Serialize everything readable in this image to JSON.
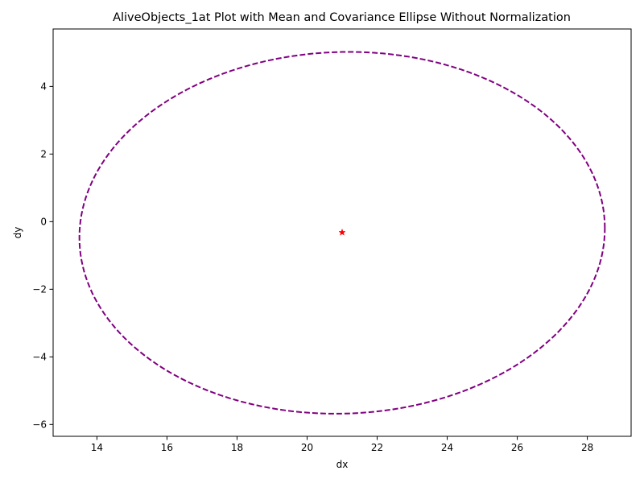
{
  "chart_data": {
    "type": "scatter",
    "title": "AliveObjects_1at Plot with Mean and Covariance Ellipse Without Normalization",
    "xlabel": "dx",
    "ylabel": "dy",
    "xlim": [
      12.75,
      29.25
    ],
    "ylim": [
      -6.35,
      5.7
    ],
    "x_ticks": [
      14,
      16,
      18,
      20,
      22,
      24,
      26,
      28
    ],
    "y_ticks": [
      -6,
      -4,
      -2,
      0,
      2,
      4
    ],
    "grid": false,
    "mean": {
      "x": 21.0,
      "y": -0.32,
      "color": "#ff0000",
      "marker": "star"
    },
    "ellipse": {
      "center_x": 21.0,
      "center_y": -0.33,
      "semi_axis_x": 7.5,
      "semi_axis_y": 5.35,
      "tilt_dy_per_dx": 0.018,
      "color": "#800080",
      "style": "dashed"
    }
  }
}
